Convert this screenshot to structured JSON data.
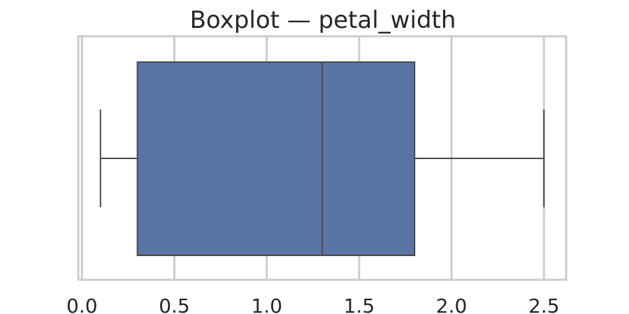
{
  "chart_data": {
    "type": "boxplot",
    "title": "Boxplot — petal_width",
    "xlabel": "",
    "ylabel": "",
    "orientation": "horizontal",
    "xlim": [
      -0.02,
      2.62
    ],
    "xticks": [
      0.0,
      0.5,
      1.0,
      1.5,
      2.0,
      2.5
    ],
    "xtick_labels": [
      "0.0",
      "0.5",
      "1.0",
      "1.5",
      "2.0",
      "2.5"
    ],
    "grid": true,
    "box": {
      "whisker_low": 0.1,
      "q1": 0.3,
      "median": 1.3,
      "q3": 1.8,
      "whisker_high": 2.5
    },
    "colors": {
      "box_fill": "#5875a4",
      "line": "#4a4a4a",
      "grid": "#cccccc",
      "frame": "#cccccc"
    }
  }
}
